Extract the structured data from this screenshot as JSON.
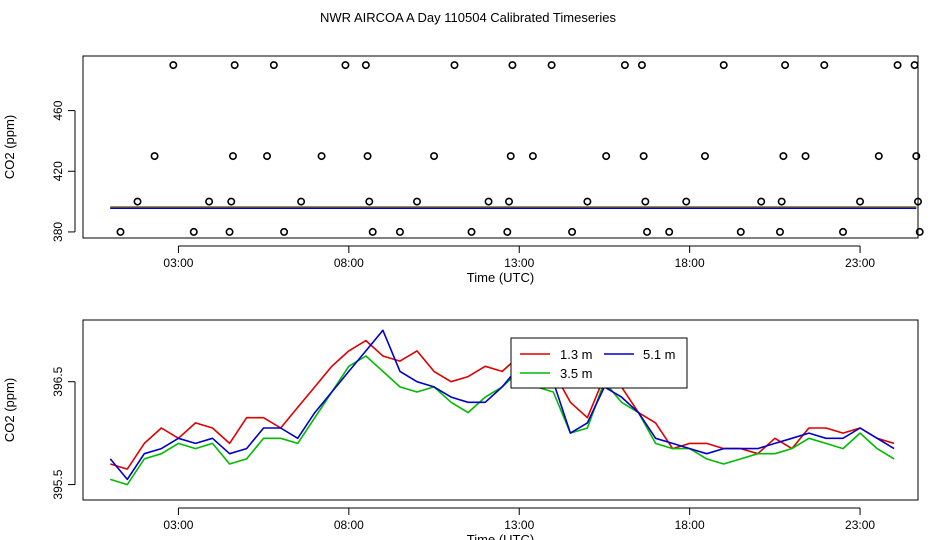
{
  "figure": {
    "title": "NWR AIRCOA A  Day 110504  Calibrated Timeseries"
  },
  "chart_data": [
    {
      "type": "scatter",
      "xlabel": "Time (UTC)",
      "ylabel": "CO2 (ppm)",
      "xlim": [
        0.2,
        24.7
      ],
      "ylim": [
        376,
        496
      ],
      "x_ticks": [
        3,
        8,
        13,
        18,
        23
      ],
      "x_tick_labels": [
        "03:00",
        "08:00",
        "13:00",
        "18:00",
        "23:00"
      ],
      "y_ticks": [
        380,
        420,
        460
      ],
      "y_tick_labels": [
        "380",
        "420",
        "460"
      ],
      "grid": false,
      "points": [
        {
          "x": 1.3,
          "y": 380
        },
        {
          "x": 1.8,
          "y": 400
        },
        {
          "x": 2.3,
          "y": 430
        },
        {
          "x": 2.85,
          "y": 490
        },
        {
          "x": 3.45,
          "y": 380
        },
        {
          "x": 3.9,
          "y": 400
        },
        {
          "x": 4.5,
          "y": 380
        },
        {
          "x": 4.55,
          "y": 400
        },
        {
          "x": 4.6,
          "y": 430
        },
        {
          "x": 4.65,
          "y": 490
        },
        {
          "x": 5.6,
          "y": 430
        },
        {
          "x": 5.8,
          "y": 490
        },
        {
          "x": 6.1,
          "y": 380
        },
        {
          "x": 6.6,
          "y": 400
        },
        {
          "x": 7.2,
          "y": 430
        },
        {
          "x": 7.9,
          "y": 490
        },
        {
          "x": 8.5,
          "y": 490
        },
        {
          "x": 8.55,
          "y": 430
        },
        {
          "x": 8.6,
          "y": 400
        },
        {
          "x": 8.7,
          "y": 380
        },
        {
          "x": 9.5,
          "y": 380
        },
        {
          "x": 10.0,
          "y": 400
        },
        {
          "x": 10.5,
          "y": 430
        },
        {
          "x": 11.1,
          "y": 490
        },
        {
          "x": 11.6,
          "y": 380
        },
        {
          "x": 12.1,
          "y": 400
        },
        {
          "x": 12.65,
          "y": 380
        },
        {
          "x": 12.7,
          "y": 400
        },
        {
          "x": 12.75,
          "y": 430
        },
        {
          "x": 12.8,
          "y": 490
        },
        {
          "x": 13.4,
          "y": 430
        },
        {
          "x": 13.95,
          "y": 490
        },
        {
          "x": 14.55,
          "y": 380
        },
        {
          "x": 15.0,
          "y": 400
        },
        {
          "x": 15.55,
          "y": 430
        },
        {
          "x": 16.1,
          "y": 490
        },
        {
          "x": 16.6,
          "y": 490
        },
        {
          "x": 16.65,
          "y": 430
        },
        {
          "x": 16.7,
          "y": 400
        },
        {
          "x": 16.75,
          "y": 380
        },
        {
          "x": 17.4,
          "y": 380
        },
        {
          "x": 17.9,
          "y": 400
        },
        {
          "x": 18.45,
          "y": 430
        },
        {
          "x": 19.0,
          "y": 490
        },
        {
          "x": 19.5,
          "y": 380
        },
        {
          "x": 20.1,
          "y": 400
        },
        {
          "x": 20.65,
          "y": 380
        },
        {
          "x": 20.7,
          "y": 400
        },
        {
          "x": 20.75,
          "y": 430
        },
        {
          "x": 20.8,
          "y": 490
        },
        {
          "x": 21.4,
          "y": 430
        },
        {
          "x": 21.95,
          "y": 490
        },
        {
          "x": 22.5,
          "y": 380
        },
        {
          "x": 23.0,
          "y": 400
        },
        {
          "x": 23.55,
          "y": 430
        },
        {
          "x": 24.1,
          "y": 490
        },
        {
          "x": 24.6,
          "y": 490
        },
        {
          "x": 24.65,
          "y": 430
        },
        {
          "x": 24.7,
          "y": 400
        },
        {
          "x": 24.75,
          "y": 380
        }
      ],
      "baseline": {
        "x_start": 1.0,
        "x_end": 24.65,
        "series": [
          {
            "color": "#dd0000",
            "y": 396.1
          },
          {
            "color": "#00bb00",
            "y": 395.9
          },
          {
            "color": "#0000cc",
            "y": 396.0
          }
        ]
      }
    },
    {
      "type": "line",
      "xlabel": "Time (UTC)",
      "ylabel": "CO2 (ppm)",
      "xlim": [
        0.2,
        24.7
      ],
      "ylim": [
        395.35,
        397.1
      ],
      "x_ticks": [
        3,
        8,
        13,
        18,
        23
      ],
      "x_tick_labels": [
        "03:00",
        "08:00",
        "13:00",
        "18:00",
        "23:00"
      ],
      "y_ticks": [
        395.5,
        396.5
      ],
      "y_tick_labels": [
        "395.5",
        "396.5"
      ],
      "grid": false,
      "legend_position": "top-center",
      "series": [
        {
          "name": "1.3 m",
          "color": "#dd0000",
          "x": [
            1.0,
            1.5,
            2.0,
            2.5,
            3.0,
            3.5,
            4.0,
            4.5,
            5.0,
            5.5,
            6.0,
            6.5,
            7.0,
            7.5,
            8.0,
            8.5,
            9.0,
            9.5,
            10.0,
            10.5,
            11.0,
            11.5,
            12.0,
            12.5,
            13.0,
            13.5,
            14.0,
            14.5,
            15.0,
            15.5,
            16.0,
            16.5,
            17.0,
            17.5,
            18.0,
            18.5,
            19.0,
            19.5,
            20.0,
            20.5,
            21.0,
            21.5,
            22.0,
            22.5,
            23.0,
            23.5,
            24.0
          ],
          "values": [
            395.7,
            395.65,
            395.9,
            396.05,
            395.95,
            396.1,
            396.05,
            395.9,
            396.15,
            396.15,
            396.05,
            396.25,
            396.45,
            396.65,
            396.8,
            396.9,
            396.75,
            396.7,
            396.8,
            396.6,
            396.5,
            396.55,
            396.65,
            396.6,
            396.75,
            396.65,
            396.6,
            396.3,
            396.15,
            396.55,
            396.45,
            396.2,
            396.1,
            395.85,
            395.9,
            395.9,
            395.85,
            395.85,
            395.8,
            395.95,
            395.85,
            396.05,
            396.05,
            396.0,
            396.05,
            395.95,
            395.9
          ]
        },
        {
          "name": "3.5 m",
          "color": "#00bb00",
          "x": [
            1.0,
            1.5,
            2.0,
            2.5,
            3.0,
            3.5,
            4.0,
            4.5,
            5.0,
            5.5,
            6.0,
            6.5,
            7.0,
            7.5,
            8.0,
            8.5,
            9.0,
            9.5,
            10.0,
            10.5,
            11.0,
            11.5,
            12.0,
            12.5,
            13.0,
            13.5,
            14.0,
            14.5,
            15.0,
            15.5,
            16.0,
            16.5,
            17.0,
            17.5,
            18.0,
            18.5,
            19.0,
            19.5,
            20.0,
            20.5,
            21.0,
            21.5,
            22.0,
            22.5,
            23.0,
            23.5,
            24.0
          ],
          "values": [
            395.55,
            395.5,
            395.75,
            395.8,
            395.9,
            395.85,
            395.9,
            395.7,
            395.75,
            395.95,
            395.95,
            395.9,
            396.15,
            396.4,
            396.65,
            396.75,
            396.6,
            396.45,
            396.4,
            396.45,
            396.3,
            396.2,
            396.35,
            396.45,
            396.6,
            396.45,
            396.4,
            396.0,
            396.05,
            396.5,
            396.3,
            396.2,
            395.9,
            395.85,
            395.85,
            395.75,
            395.7,
            395.75,
            395.8,
            395.8,
            395.85,
            395.95,
            395.9,
            395.85,
            396.0,
            395.85,
            395.75
          ]
        },
        {
          "name": "5.1 m",
          "color": "#0000cc",
          "x": [
            1.0,
            1.5,
            2.0,
            2.5,
            3.0,
            3.5,
            4.0,
            4.5,
            5.0,
            5.5,
            6.0,
            6.5,
            7.0,
            7.5,
            8.0,
            8.5,
            9.0,
            9.5,
            10.0,
            10.5,
            11.0,
            11.5,
            12.0,
            12.5,
            13.0,
            13.5,
            14.0,
            14.5,
            15.0,
            15.5,
            16.0,
            16.5,
            17.0,
            17.5,
            18.0,
            18.5,
            19.0,
            19.5,
            20.0,
            20.5,
            21.0,
            21.5,
            22.0,
            22.5,
            23.0,
            23.5,
            24.0
          ],
          "values": [
            395.75,
            395.55,
            395.8,
            395.85,
            395.95,
            395.9,
            395.95,
            395.8,
            395.85,
            396.05,
            396.05,
            395.95,
            396.2,
            396.4,
            396.6,
            396.8,
            397.0,
            396.6,
            396.5,
            396.45,
            396.35,
            396.3,
            396.3,
            396.45,
            396.65,
            396.6,
            396.5,
            396.0,
            396.1,
            396.45,
            396.35,
            396.2,
            395.95,
            395.9,
            395.85,
            395.8,
            395.85,
            395.85,
            395.85,
            395.9,
            395.95,
            396.0,
            395.95,
            395.95,
            396.05,
            395.95,
            395.85
          ]
        }
      ]
    }
  ]
}
